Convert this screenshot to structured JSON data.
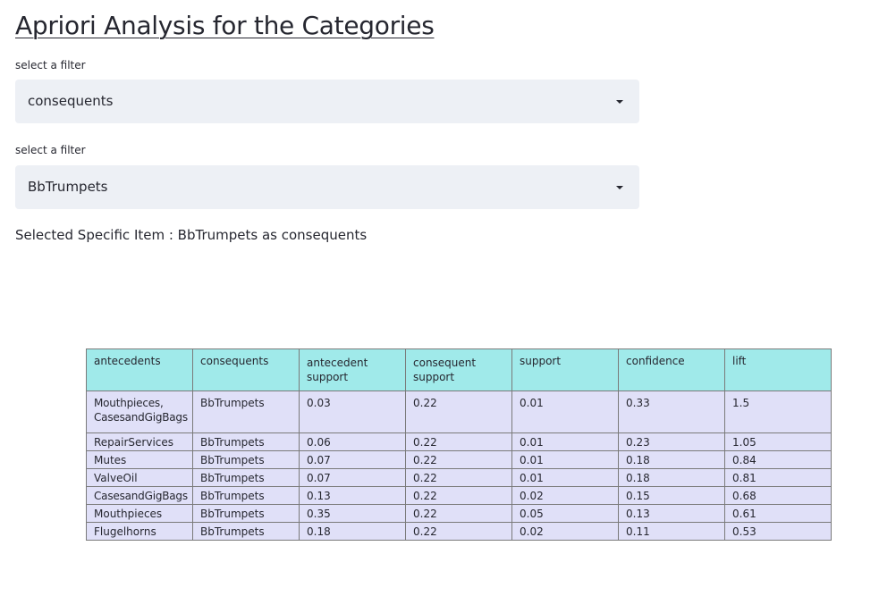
{
  "page": {
    "title": "Apriori Analysis for the Categories"
  },
  "filters": [
    {
      "label": "select a filter",
      "selected": "consequents",
      "icon": "caret-down-icon"
    },
    {
      "label": "select a filter",
      "selected": "BbTrumpets",
      "icon": "caret-down-icon"
    }
  ],
  "selection_summary": "Selected Specific Item : BbTrumpets as consequents",
  "table": {
    "header_bg": "#a0eaea",
    "row_bg": "#e0e0f8",
    "columns": [
      "antecedents",
      "consequents",
      "antecedent support",
      "consequent support",
      "support",
      "confidence",
      "lift"
    ],
    "rows": [
      [
        "Mouthpieces, CasesandGigBags",
        "BbTrumpets",
        "0.03",
        "0.22",
        "0.01",
        "0.33",
        "1.5"
      ],
      [
        "RepairServices",
        "BbTrumpets",
        "0.06",
        "0.22",
        "0.01",
        "0.23",
        "1.05"
      ],
      [
        "Mutes",
        "BbTrumpets",
        "0.07",
        "0.22",
        "0.01",
        "0.18",
        "0.84"
      ],
      [
        "ValveOil",
        "BbTrumpets",
        "0.07",
        "0.22",
        "0.01",
        "0.18",
        "0.81"
      ],
      [
        "CasesandGigBags",
        "BbTrumpets",
        "0.13",
        "0.22",
        "0.02",
        "0.15",
        "0.68"
      ],
      [
        "Mouthpieces",
        "BbTrumpets",
        "0.35",
        "0.22",
        "0.05",
        "0.13",
        "0.61"
      ],
      [
        "Flugelhorns",
        "BbTrumpets",
        "0.18",
        "0.22",
        "0.02",
        "0.11",
        "0.53"
      ]
    ]
  }
}
